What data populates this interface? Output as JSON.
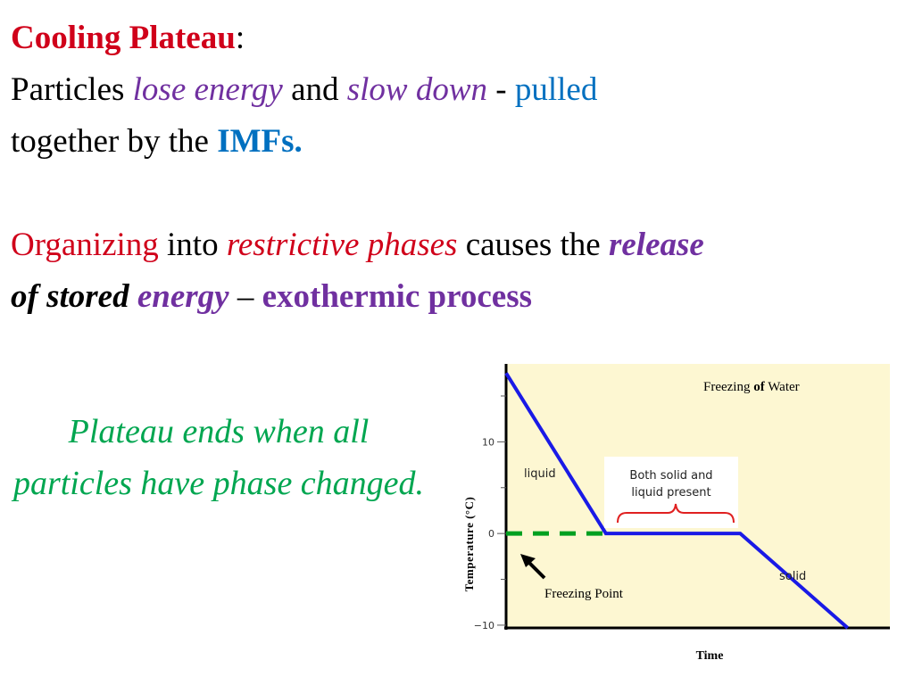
{
  "slide": {
    "heading": "Cooling Plateau",
    "heading_colon": ":",
    "line1": {
      "a": "Particles ",
      "b": "lose energy",
      "c": " and ",
      "d": "slow down",
      "e": " - ",
      "f": "pulled"
    },
    "line2": {
      "a": "together by the ",
      "b": "IMFs."
    },
    "para2": {
      "a": "Organizing",
      "b": " into ",
      "c": "restrictive phases",
      "d": " causes the ",
      "e": "release",
      "f": "of stored",
      "g": " ",
      "h": "energy",
      "i": " – ",
      "j": "exothermic process"
    },
    "note": "Plateau ends when all particles have phase changed."
  },
  "colors": {
    "red": "#d0001a",
    "purple": "#7030a0",
    "blue": "#0070c0",
    "green": "#00a650",
    "chart_bg": "#fdf7d2",
    "curve": "#1a1ae6",
    "dashed": "#00a020",
    "brace": "#e02020"
  },
  "chart_data": {
    "type": "line",
    "title_prefix": "Freezing ",
    "title_bold": "of",
    "title_suffix": " Water",
    "xlabel": "Time",
    "ylabel": "Temperature (°C)",
    "yticks": [
      10,
      0,
      -10
    ],
    "ytick_labels": [
      "10",
      "0",
      "−10"
    ],
    "ylim": [
      -10.3,
      18.5
    ],
    "xlim": [
      0,
      10
    ],
    "series": [
      {
        "x": [
          0,
          2.6,
          6.1,
          8.9
        ],
        "y": [
          17.5,
          0,
          0,
          -10.3
        ]
      }
    ],
    "regions": {
      "liquid": "liquid",
      "both_line1": "Both solid and",
      "both_line2": "liquid present",
      "solid": "solid"
    },
    "freezing_point_label": "Freezing Point"
  }
}
